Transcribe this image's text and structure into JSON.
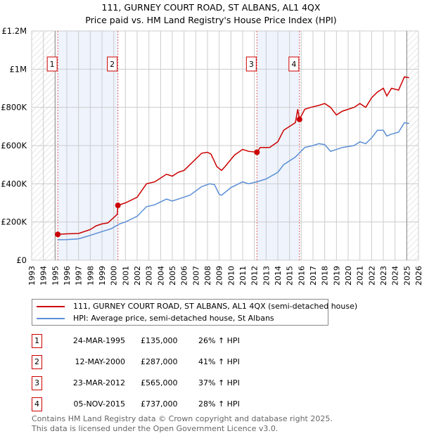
{
  "title": "111, GURNEY COURT ROAD, ST ALBANS, AL1 4QX",
  "subtitle": "Price paid vs. HM Land Registry's House Price Index (HPI)",
  "chart_data": {
    "type": "line",
    "xlim": [
      1993,
      2026
    ],
    "ylim": [
      0,
      1200000
    ],
    "y_ticks": [
      0,
      200000,
      400000,
      600000,
      800000,
      1000000,
      1200000
    ],
    "y_tick_labels": [
      "£0",
      "£200K",
      "£400K",
      "£600K",
      "£800K",
      "£1M",
      "£1.2M"
    ],
    "x_ticks": [
      "1993",
      "1994",
      "1995",
      "1996",
      "1997",
      "1998",
      "1999",
      "2000",
      "2001",
      "2002",
      "2003",
      "2004",
      "2005",
      "2006",
      "2007",
      "2008",
      "2009",
      "2010",
      "2011",
      "2012",
      "2013",
      "2014",
      "2015",
      "2016",
      "2017",
      "2018",
      "2019",
      "2020",
      "2021",
      "2022",
      "2023",
      "2024",
      "2025",
      "2026"
    ],
    "grid": true,
    "hatched_ranges": [
      [
        1993,
        1995
      ],
      [
        2025.0,
        2026
      ]
    ],
    "shaded_ranges": [
      [
        1995.23,
        2000.36
      ],
      [
        2012.22,
        2015.85
      ]
    ],
    "colors": {
      "price": "#cc0000",
      "hpi": "#5b8fd6",
      "shade": "#eef3fc"
    },
    "series": [
      {
        "name": "111, GURNEY COURT ROAD, ST ALBANS, AL1 4QX (semi-detached house)",
        "color": "#cc0000",
        "x": [
          1995.23,
          1996,
          1997,
          1998,
          1998.5,
          1999,
          1999.5,
          2000.3,
          2000.36,
          2001,
          2002,
          2002.8,
          2003.5,
          2004.5,
          2005,
          2005.5,
          2006,
          2006.5,
          2007.5,
          2008,
          2008.3,
          2008.8,
          2009.2,
          2009.5,
          2010.3,
          2011,
          2011.5,
          2012.22,
          2012.5,
          2013.3,
          2014,
          2014.5,
          2015,
          2015.5,
          2015.7,
          2015.85,
          2016.3,
          2016.8,
          2017.5,
          2018,
          2018.5,
          2019,
          2019.5,
          2020,
          2020.5,
          2021,
          2021.5,
          2022,
          2022.5,
          2023,
          2023.3,
          2023.7,
          2024.3,
          2024.8,
          2025.2
        ],
        "y": [
          135000,
          138000,
          140000,
          160000,
          180000,
          190000,
          195000,
          240000,
          287000,
          300000,
          330000,
          400000,
          410000,
          450000,
          440000,
          460000,
          470000,
          500000,
          560000,
          565000,
          555000,
          490000,
          470000,
          490000,
          550000,
          580000,
          570000,
          565000,
          590000,
          590000,
          620000,
          680000,
          700000,
          720000,
          790000,
          737000,
          790000,
          800000,
          810000,
          820000,
          800000,
          760000,
          780000,
          790000,
          800000,
          820000,
          800000,
          850000,
          880000,
          900000,
          860000,
          900000,
          890000,
          960000,
          955000
        ]
      },
      {
        "name": "HPI: Average price, semi-detached house, St Albans",
        "color": "#5b8fd6",
        "x": [
          1995.23,
          1996,
          1997,
          1998,
          1999,
          1999.8,
          2000.5,
          2001,
          2002,
          2002.8,
          2003.5,
          2004.5,
          2005,
          2005.5,
          2006.5,
          2007.5,
          2008.2,
          2008.6,
          2009,
          2009.2,
          2010,
          2011,
          2011.5,
          2012.2,
          2013,
          2014,
          2014.5,
          2015.5,
          2016.3,
          2017,
          2017.5,
          2018,
          2018.5,
          2019.5,
          2020.5,
          2021,
          2021.5,
          2022,
          2022.5,
          2023,
          2023.3,
          2023.7,
          2024.3,
          2024.8,
          2025.2
        ],
        "y": [
          107000,
          108000,
          112000,
          130000,
          150000,
          165000,
          190000,
          200000,
          230000,
          280000,
          290000,
          320000,
          310000,
          320000,
          340000,
          385000,
          400000,
          395000,
          345000,
          340000,
          380000,
          410000,
          400000,
          410000,
          425000,
          460000,
          500000,
          540000,
          590000,
          600000,
          610000,
          605000,
          570000,
          590000,
          600000,
          620000,
          610000,
          640000,
          680000,
          680000,
          650000,
          660000,
          670000,
          720000,
          715000
        ]
      }
    ],
    "sales": [
      {
        "label": "1",
        "x": 1995.23,
        "y": 135000
      },
      {
        "label": "2",
        "x": 2000.36,
        "y": 287000
      },
      {
        "label": "3",
        "x": 2012.22,
        "y": 565000
      },
      {
        "label": "4",
        "x": 2015.85,
        "y": 737000
      }
    ]
  },
  "legend": {
    "price_label": "111, GURNEY COURT ROAD, ST ALBANS, AL1 4QX (semi-detached house)",
    "hpi_label": "HPI: Average price, semi-detached house, St Albans"
  },
  "transactions": [
    {
      "num": "1",
      "date": "24-MAR-1995",
      "price": "£135,000",
      "hpi": "26% ↑ HPI"
    },
    {
      "num": "2",
      "date": "12-MAY-2000",
      "price": "£287,000",
      "hpi": "41% ↑ HPI"
    },
    {
      "num": "3",
      "date": "23-MAR-2012",
      "price": "£565,000",
      "hpi": "37% ↑ HPI"
    },
    {
      "num": "4",
      "date": "05-NOV-2015",
      "price": "£737,000",
      "hpi": "28% ↑ HPI"
    }
  ],
  "footer": {
    "line1": "Contains HM Land Registry data © Crown copyright and database right 2025.",
    "line2": "This data is licensed under the Open Government Licence v3.0."
  }
}
